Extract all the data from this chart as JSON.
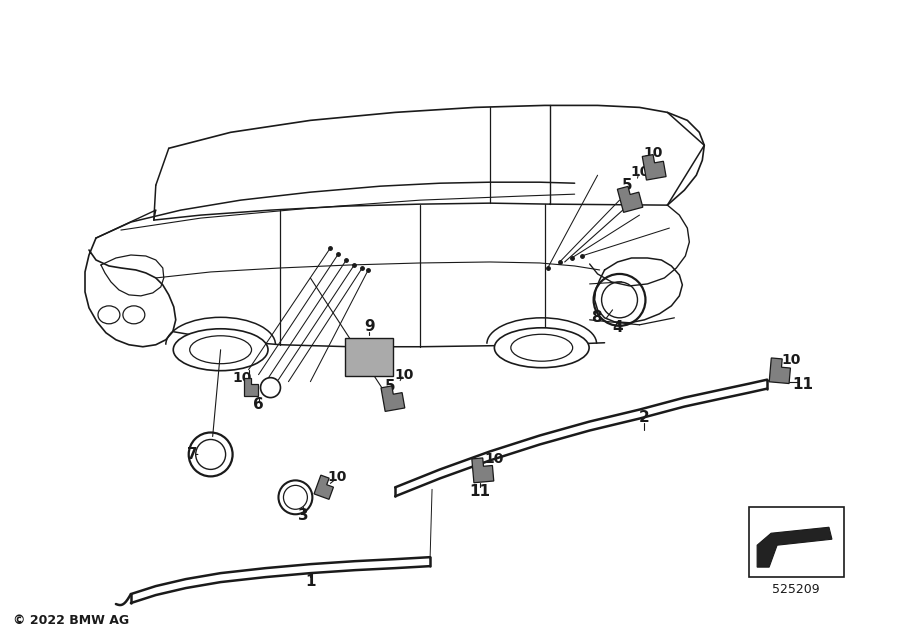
{
  "bg_color": "#ffffff",
  "lc": "#1a1a1a",
  "pc": "#808080",
  "dc": "#333333",
  "copyright": "© 2022 BMW AG",
  "part_number": "525209",
  "lfs": 11,
  "sfs": 10,
  "cfs": 9,
  "figsize": [
    9.0,
    6.3
  ],
  "dpi": 100
}
